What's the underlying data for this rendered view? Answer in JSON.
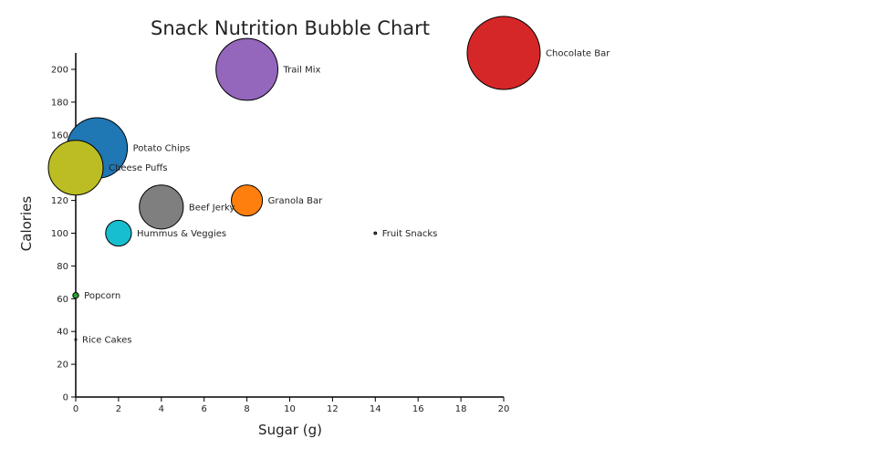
{
  "chart_data": {
    "type": "scatter",
    "title": "Snack Nutrition Bubble Chart",
    "xlabel": "Sugar (g)",
    "ylabel": "Calories",
    "xlim": [
      0,
      20
    ],
    "ylim": [
      0,
      210
    ],
    "xticks": [
      0,
      2,
      4,
      6,
      8,
      10,
      12,
      14,
      16,
      18,
      20
    ],
    "yticks": [
      0,
      20,
      40,
      60,
      80,
      100,
      120,
      140,
      160,
      180,
      200
    ],
    "grid": false,
    "points": [
      {
        "label": "Chocolate Bar",
        "x": 20,
        "y": 210,
        "size": 16,
        "color": "#d62728"
      },
      {
        "label": "Trail Mix",
        "x": 8,
        "y": 200,
        "size": 11.5,
        "color": "#9467bd"
      },
      {
        "label": "Potato Chips",
        "x": 1,
        "y": 152,
        "size": 11,
        "color": "#1f77b4"
      },
      {
        "label": "Cheese Puffs",
        "x": 0,
        "y": 140,
        "size": 9,
        "color": "#bcbd22"
      },
      {
        "label": "Beef Jerky",
        "x": 4,
        "y": 116,
        "size": 5.8,
        "color": "#7f7f7f"
      },
      {
        "label": "Granola Bar",
        "x": 8,
        "y": 120,
        "size": 2.9,
        "color": "#ff7f0e"
      },
      {
        "label": "Hummus & Veggies",
        "x": 2,
        "y": 100,
        "size": 2,
        "color": "#17becf"
      },
      {
        "label": "Fruit Snacks",
        "x": 14,
        "y": 100,
        "size": 0.02,
        "color": "#8c564b"
      },
      {
        "label": "Popcorn",
        "x": 0,
        "y": 62,
        "size": 0.1,
        "color": "#2ca02c"
      },
      {
        "label": "Rice Cakes",
        "x": 0,
        "y": 35,
        "size": 0.01,
        "color": "#e377c2"
      }
    ]
  }
}
